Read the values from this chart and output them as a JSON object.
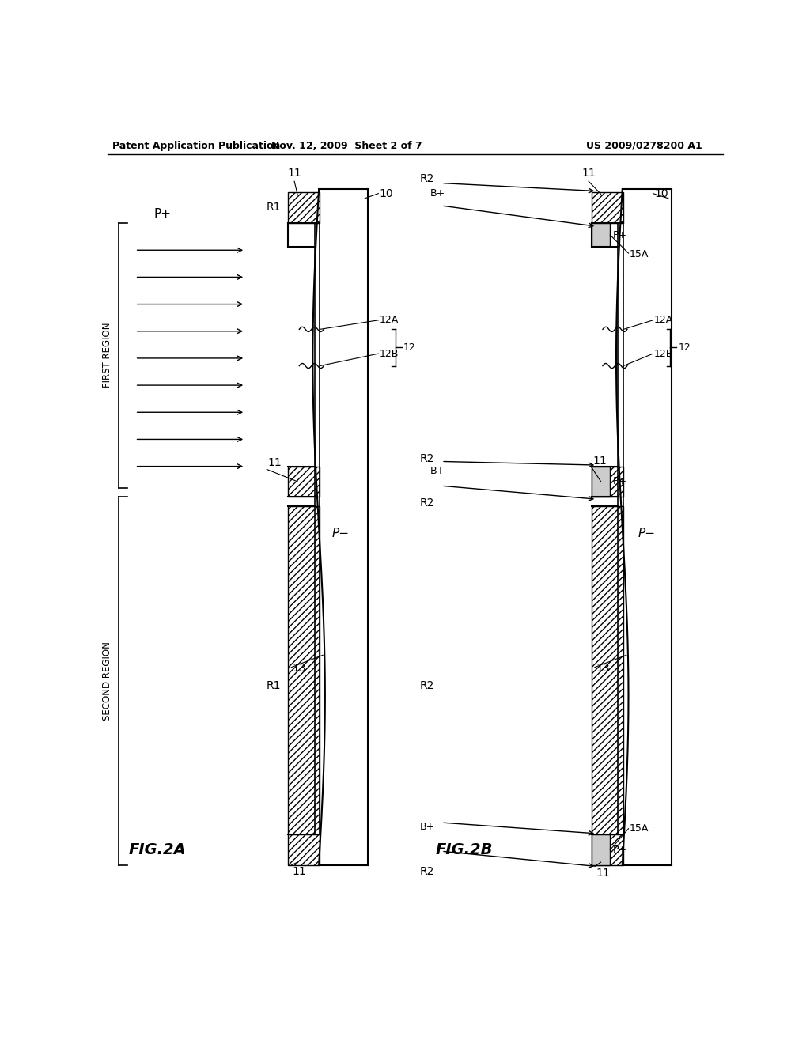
{
  "title_left": "Patent Application Publication",
  "title_mid": "Nov. 12, 2009  Sheet 2 of 7",
  "title_right": "US 2009/0278200 A1",
  "fig2a_label": "FIG.2A",
  "fig2b_label": "FIG.2B",
  "bg_color": "#ffffff",
  "line_color": "#000000",
  "hatch_color": "#555555",
  "label_fontsize": 10,
  "header_fontsize": 9
}
